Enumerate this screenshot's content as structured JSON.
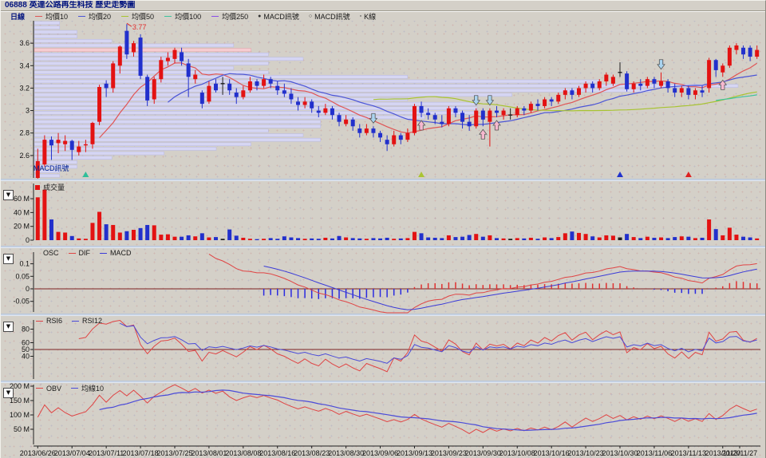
{
  "window": {
    "title": "06888 英達公路再生科技  歷史走勢圖"
  },
  "colors": {
    "title": "#00127e",
    "up": "#e31212",
    "down": "#2230cc",
    "flat": "#202020",
    "ma10": "#e05555",
    "ma20": "#4b55d6",
    "ma50": "#a8c332",
    "ma100": "#3cc49e",
    "ma250": "#8a4fe8",
    "dif": "#e04444",
    "macd": "#3b3bd8",
    "osc_pos": "#e03030",
    "osc_neg": "#2a2ae0",
    "rsi6": "#e04444",
    "rsi12": "#4b4bd8",
    "obv": "#e04444",
    "obv_ma": "#4b4bd8",
    "ref_line": "#7c2222",
    "axis": "#202020",
    "band": "#d6d6f3",
    "band_stroke": "#b7b7e0",
    "band_hot": "#f6ccd1",
    "band_hot_stroke": "#dfa3ac",
    "up_arrow": "#f6b8cf",
    "down_arrow": "#aad4f0"
  },
  "legend": {
    "period": "日線",
    "ma_items": [
      {
        "label": "均價10",
        "color": "#e05555"
      },
      {
        "label": "均價20",
        "color": "#4b55d6"
      },
      {
        "label": "均價50",
        "color": "#a8c332"
      },
      {
        "label": "均價100",
        "color": "#3cc49e"
      },
      {
        "label": "均價250",
        "color": "#8a4fe8"
      }
    ],
    "signal_items": [
      {
        "marker": "●",
        "label": "MACD訊號"
      },
      {
        "marker": "○",
        "label": "MACD訊號"
      },
      {
        "marker": "▫",
        "label": "K線"
      }
    ]
  },
  "panes": {
    "collapse_glyph": "▼",
    "volume": {
      "legend_label": "成交量"
    },
    "macd": {
      "items": [
        {
          "label": "OSC",
          "dash": ""
        },
        {
          "label": "DIF",
          "dash": "#e04444"
        },
        {
          "label": "MACD",
          "dash": "#3b3bd8"
        }
      ]
    },
    "rsi": {
      "items": [
        {
          "label": "RSI6",
          "dash": "#e04444"
        },
        {
          "label": "RSI12",
          "dash": "#4b4bd8"
        }
      ]
    },
    "obv": {
      "items": [
        {
          "label": "OBV",
          "dash": "#e04444"
        },
        {
          "label": "均線10",
          "dash": "#4b4bd8"
        }
      ]
    }
  },
  "chart_data": {
    "type": "candlestick",
    "title": "06888 英達公路再生科技 歷史走勢圖",
    "x_dates": [
      "2013/06/26",
      "2013/07/04",
      "2013/07/11",
      "2013/07/18",
      "2013/07/25",
      "2013/08/01",
      "2013/08/08",
      "2013/08/16",
      "2013/08/23",
      "2013/08/30",
      "2013/09/06",
      "2013/09/13",
      "2013/09/23",
      "2013/09/30",
      "2013/10/08",
      "2013/10/16",
      "2013/10/23",
      "2013/10/30",
      "2013/11/06",
      "2013/11/13",
      "2013/11/20",
      "2013/11/27"
    ],
    "x_label_every_bars": 5,
    "main": {
      "price_range": [
        2.4,
        3.8
      ],
      "yticks": [
        {
          "v": 3.6,
          "t": "3.6"
        },
        {
          "v": 3.4,
          "t": "3.4"
        },
        {
          "v": 3.2,
          "t": "3.2"
        },
        {
          "v": 3.0,
          "t": "3"
        },
        {
          "v": 2.8,
          "t": "2.8"
        },
        {
          "v": 2.6,
          "t": "2.6"
        }
      ],
      "high_annotation": {
        "text": "3.77",
        "bar": 13
      },
      "inpane_label": {
        "text": "MACD訊號",
        "color": "#002090"
      },
      "ohlc": [
        [
          2.4,
          2.66,
          2.38,
          2.55
        ],
        [
          2.52,
          2.78,
          2.5,
          2.74
        ],
        [
          2.74,
          2.77,
          2.56,
          2.69
        ],
        [
          2.71,
          2.8,
          2.62,
          2.74
        ],
        [
          2.7,
          2.78,
          2.64,
          2.73
        ],
        [
          2.73,
          2.74,
          2.56,
          2.65
        ],
        [
          2.63,
          2.73,
          2.6,
          2.68
        ],
        [
          2.69,
          2.74,
          2.63,
          2.7
        ],
        [
          2.7,
          2.9,
          2.66,
          2.89
        ],
        [
          2.9,
          3.23,
          2.87,
          3.21
        ],
        [
          3.24,
          3.27,
          3.12,
          3.2
        ],
        [
          3.2,
          3.44,
          3.16,
          3.42
        ],
        [
          3.4,
          3.58,
          3.33,
          3.57
        ],
        [
          3.71,
          3.77,
          3.46,
          3.5
        ],
        [
          3.52,
          3.62,
          3.48,
          3.6
        ],
        [
          3.65,
          3.68,
          3.28,
          3.31
        ],
        [
          3.3,
          3.32,
          3.04,
          3.09
        ],
        [
          3.1,
          3.3,
          3.06,
          3.28
        ],
        [
          3.28,
          3.48,
          3.25,
          3.45
        ],
        [
          3.44,
          3.52,
          3.4,
          3.47
        ],
        [
          3.46,
          3.56,
          3.42,
          3.54
        ],
        [
          3.52,
          3.56,
          3.4,
          3.44
        ],
        [
          3.42,
          3.46,
          3.12,
          3.3
        ],
        [
          3.28,
          3.36,
          3.24,
          3.32
        ],
        [
          3.16,
          3.18,
          3.02,
          3.06
        ],
        [
          3.08,
          3.26,
          3.06,
          3.22
        ],
        [
          3.24,
          3.28,
          3.16,
          3.18
        ],
        [
          3.24,
          3.3,
          3.14,
          3.24
        ],
        [
          3.24,
          3.28,
          3.14,
          3.18
        ],
        [
          3.16,
          3.2,
          3.06,
          3.12
        ],
        [
          3.12,
          3.22,
          3.1,
          3.18
        ],
        [
          3.18,
          3.3,
          3.16,
          3.26
        ],
        [
          3.26,
          3.28,
          3.18,
          3.22
        ],
        [
          3.22,
          3.32,
          3.2,
          3.28
        ],
        [
          3.28,
          3.3,
          3.2,
          3.24
        ],
        [
          3.22,
          3.26,
          3.14,
          3.18
        ],
        [
          3.18,
          3.24,
          3.12,
          3.15
        ],
        [
          3.15,
          3.2,
          3.06,
          3.1
        ],
        [
          3.08,
          3.12,
          3.0,
          3.05
        ],
        [
          3.05,
          3.12,
          3.02,
          3.08
        ],
        [
          3.08,
          3.1,
          2.98,
          3.02
        ],
        [
          3.0,
          3.04,
          2.94,
          2.98
        ],
        [
          2.98,
          3.06,
          2.96,
          3.02
        ],
        [
          3.02,
          3.04,
          2.92,
          2.96
        ],
        [
          2.96,
          2.98,
          2.86,
          2.9
        ],
        [
          2.88,
          2.96,
          2.86,
          2.92
        ],
        [
          2.92,
          2.94,
          2.82,
          2.86
        ],
        [
          2.84,
          2.88,
          2.76,
          2.8
        ],
        [
          2.8,
          2.88,
          2.78,
          2.84
        ],
        [
          2.84,
          2.86,
          2.76,
          2.8
        ],
        [
          2.8,
          2.82,
          2.72,
          2.76
        ],
        [
          2.74,
          2.78,
          2.64,
          2.7
        ],
        [
          2.7,
          2.82,
          2.68,
          2.78
        ],
        [
          2.78,
          2.8,
          2.7,
          2.74
        ],
        [
          2.74,
          2.84,
          2.72,
          2.8
        ],
        [
          2.8,
          3.06,
          2.78,
          3.04
        ],
        [
          3.04,
          3.08,
          2.94,
          2.98
        ],
        [
          2.98,
          3.02,
          2.92,
          2.96
        ],
        [
          2.96,
          2.98,
          2.88,
          2.92
        ],
        [
          2.9,
          2.96,
          2.85,
          2.88
        ],
        [
          2.88,
          3.04,
          2.86,
          3.02
        ],
        [
          3.02,
          3.04,
          2.94,
          2.98
        ],
        [
          2.98,
          3.0,
          2.84,
          2.9
        ],
        [
          2.9,
          2.96,
          2.82,
          2.86
        ],
        [
          2.86,
          3.02,
          2.84,
          3.0
        ],
        [
          3.0,
          3.02,
          2.86,
          2.92
        ],
        [
          2.9,
          3.02,
          2.68,
          3.0
        ],
        [
          3.0,
          3.04,
          2.94,
          2.98
        ],
        [
          2.96,
          3.02,
          2.92,
          3.0
        ],
        [
          2.96,
          3.02,
          2.92,
          2.96
        ],
        [
          2.96,
          3.04,
          2.94,
          3.02
        ],
        [
          3.02,
          3.04,
          2.96,
          3.0
        ],
        [
          3.0,
          3.08,
          2.98,
          3.06
        ],
        [
          3.06,
          3.1,
          3.0,
          3.04
        ],
        [
          3.04,
          3.12,
          3.02,
          3.1
        ],
        [
          3.1,
          3.12,
          3.04,
          3.08
        ],
        [
          3.08,
          3.16,
          3.06,
          3.14
        ],
        [
          3.14,
          3.2,
          3.1,
          3.18
        ],
        [
          3.18,
          3.2,
          3.1,
          3.14
        ],
        [
          3.14,
          3.22,
          3.12,
          3.2
        ],
        [
          3.2,
          3.26,
          3.16,
          3.24
        ],
        [
          3.24,
          3.26,
          3.16,
          3.2
        ],
        [
          3.2,
          3.28,
          3.18,
          3.26
        ],
        [
          3.26,
          3.34,
          3.22,
          3.32
        ],
        [
          3.24,
          3.32,
          3.22,
          3.3
        ],
        [
          3.34,
          3.43,
          3.3,
          3.34
        ],
        [
          3.33,
          3.35,
          3.17,
          3.19
        ],
        [
          3.19,
          3.26,
          3.16,
          3.24
        ],
        [
          3.24,
          3.28,
          3.18,
          3.22
        ],
        [
          3.22,
          3.3,
          3.2,
          3.28
        ],
        [
          3.28,
          3.3,
          3.2,
          3.24
        ],
        [
          3.22,
          3.34,
          3.2,
          3.26
        ],
        [
          3.26,
          3.28,
          3.16,
          3.2
        ],
        [
          3.2,
          3.24,
          3.12,
          3.16
        ],
        [
          3.16,
          3.22,
          3.12,
          3.2
        ],
        [
          3.2,
          3.22,
          3.1,
          3.14
        ],
        [
          3.14,
          3.2,
          3.1,
          3.18
        ],
        [
          3.18,
          3.22,
          3.12,
          3.16
        ],
        [
          3.2,
          3.47,
          3.16,
          3.45
        ],
        [
          3.45,
          3.46,
          3.3,
          3.36
        ],
        [
          3.34,
          3.42,
          3.3,
          3.4
        ],
        [
          3.4,
          3.58,
          3.38,
          3.56
        ],
        [
          3.54,
          3.6,
          3.5,
          3.58
        ],
        [
          3.56,
          3.58,
          3.46,
          3.5
        ],
        [
          3.56,
          3.58,
          3.44,
          3.48
        ],
        [
          3.48,
          3.58,
          3.46,
          3.54
        ]
      ],
      "ma_periods": [
        10,
        20,
        50,
        100,
        250
      ],
      "markers": {
        "up_arrow_bars": [
          56,
          65,
          67,
          100
        ],
        "down_arrow_bars": [
          49,
          64,
          66,
          91
        ],
        "triangle_markers": [
          {
            "bar": 7,
            "color": "#2fbf9a"
          },
          {
            "bar": 56,
            "color": "#aac433"
          },
          {
            "bar": 85,
            "color": "#2233cc"
          },
          {
            "bar": 95,
            "color": "#dd2222"
          }
        ]
      }
    },
    "volume": {
      "unit": "M",
      "axis_max": 82,
      "yticks": [
        {
          "v": 60,
          "t": "60 M"
        },
        {
          "v": 40,
          "t": "40 M"
        },
        {
          "v": 20,
          "t": "20 M"
        },
        {
          "v": 0,
          "t": "0"
        }
      ],
      "values": [
        62,
        73,
        30,
        12,
        11,
        6,
        2.5,
        2,
        25,
        41,
        23,
        22,
        11,
        13,
        15,
        17.5,
        22,
        21.5,
        8,
        8.5,
        5,
        5,
        7,
        5.5,
        10,
        4,
        4.5,
        2,
        15.5,
        6.5,
        3.5,
        2,
        1.5,
        2,
        3,
        2,
        5.5,
        4,
        3,
        2,
        2.5,
        2,
        3.5,
        2.5,
        6,
        4,
        3,
        2.5,
        2,
        3,
        2.5,
        3.5,
        2,
        2.5,
        3,
        12,
        10,
        4,
        3.5,
        3,
        7,
        4.5,
        5,
        7.5,
        9,
        5,
        7,
        3,
        2.5,
        2,
        3,
        2.5,
        3.5,
        2,
        4,
        3,
        4.5,
        10,
        12.5,
        10.5,
        9,
        5.5,
        4,
        7,
        6.5,
        4,
        9,
        4.5,
        3,
        5,
        3.5,
        4,
        3,
        4.5,
        5.5,
        5,
        3,
        3.5,
        30,
        16,
        7,
        18,
        8,
        5,
        4,
        2.5
      ]
    },
    "macd_pane": {
      "params": [
        12,
        26,
        9
      ],
      "yticks": [
        {
          "v": 0.1,
          "t": "0.1"
        },
        {
          "v": 0.05,
          "t": "0.05"
        },
        {
          "v": 0,
          "t": "0"
        },
        {
          "v": -0.05,
          "t": "-0.05"
        }
      ],
      "zero_ref": 0
    },
    "rsi_pane": {
      "params": [
        6,
        12
      ],
      "yticks": [
        {
          "v": 80,
          "t": "80"
        },
        {
          "v": 60,
          "t": "60"
        },
        {
          "v": 50,
          "t": "50"
        },
        {
          "v": 40,
          "t": "40"
        }
      ],
      "mid_ref": 50
    },
    "obv_pane": {
      "ma_period": 10,
      "yticks": [
        {
          "v": 200,
          "t": "200 M"
        },
        {
          "v": 150,
          "t": "150 M"
        },
        {
          "v": 100,
          "t": "100 M"
        },
        {
          "v": 50,
          "t": "50 M"
        }
      ],
      "display_range_m": [
        35,
        205
      ]
    }
  }
}
